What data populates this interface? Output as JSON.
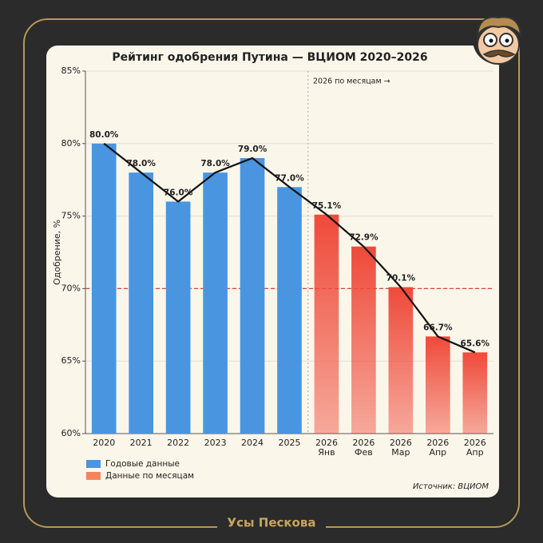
{
  "chart_data": {
    "type": "bar",
    "title": "Рейтинг одобрения Путина — ВЦИОМ 2020–2026",
    "y_label": "Одобрение, %",
    "annotation": "2026 по месяцам →",
    "source": "Источник: ВЦИОМ",
    "brand": "Усы Пескова",
    "categories": [
      "2020",
      "2021",
      "2022",
      "2023",
      "2024",
      "2025",
      "2026\nЯнв",
      "2026\nФев",
      "2026\nМар",
      "2026\nАпр",
      "2026\nАпр"
    ],
    "series": [
      {
        "name": "Годовые данные",
        "color": "#4a95e0",
        "values": [
          80.0,
          78.0,
          76.0,
          78.0,
          79.0,
          77.0,
          null,
          null,
          null,
          null,
          null
        ],
        "value_labels": [
          "80.0%",
          "78.0%",
          "76.0%",
          "78.0%",
          "79.0%",
          "77.0%",
          null,
          null,
          null,
          null,
          null
        ]
      },
      {
        "name": "Данные по месяцам",
        "color": "#ef4a3a",
        "values": [
          null,
          null,
          null,
          null,
          null,
          null,
          75.1,
          72.9,
          70.1,
          66.7,
          65.6
        ],
        "value_labels": [
          null,
          null,
          null,
          null,
          null,
          null,
          "75.1%",
          "72.9%",
          "70.1%",
          "66.7%",
          "65.6%"
        ]
      }
    ],
    "line_color": "#111111",
    "reference_line": 70,
    "reference_color": "#d9443a",
    "ylim": [
      60,
      85
    ],
    "yticks": [
      {
        "value": 60,
        "label": "60%"
      },
      {
        "value": 65,
        "label": "65%"
      },
      {
        "value": 70,
        "label": "70%"
      },
      {
        "value": 75,
        "label": "75%"
      },
      {
        "value": 80,
        "label": "80%"
      },
      {
        "value": 85,
        "label": "85%"
      }
    ],
    "grid": true,
    "legend": "bottom-left"
  }
}
